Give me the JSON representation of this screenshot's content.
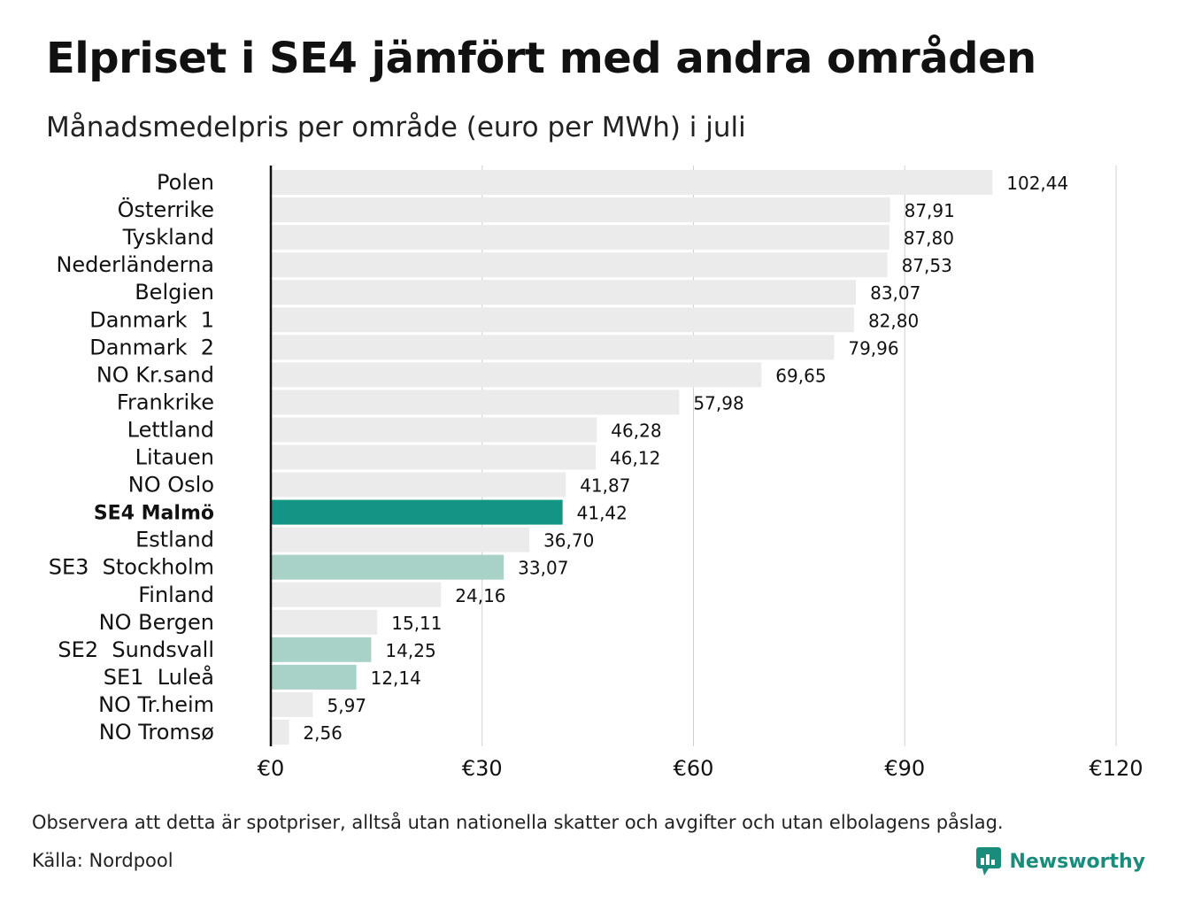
{
  "header": {
    "title": "Elpriset i SE4 jämfört med andra områden",
    "subtitle": "Månadsmedelpris per område (euro per MWh) i juli"
  },
  "footer": {
    "note": "Observera att detta är spotpriser, alltså utan nationella skatter och avgifter och utan elbolagens påslag.",
    "source": "Källa: Nordpool",
    "brand": "Newsworthy",
    "brand_icon": "newsworthy-logo-icon"
  },
  "colors": {
    "default_bar": "#ebebeb",
    "highlight_bar": "#139484",
    "swedish_bar": "#a8d1c8",
    "grid": "#d0d0d0",
    "axis": "#111111",
    "brand": "#1a8c7c"
  },
  "chart_data": {
    "type": "bar",
    "orientation": "horizontal",
    "title": "Elpriset i SE4 jämfört med andra områden",
    "subtitle": "Månadsmedelpris per område (euro per MWh) i juli",
    "xlim": [
      0,
      120
    ],
    "x_ticks": [
      0,
      30,
      60,
      90,
      120
    ],
    "x_tick_labels": [
      "€0",
      "€30",
      "€60",
      "€90",
      "€120"
    ],
    "grid": true,
    "categories": [
      "Polen",
      "Österrike",
      "Tyskland",
      "Nederländerna",
      "Belgien",
      "Danmark  1",
      "Danmark  2",
      "NO Kr.sand",
      "Frankrike",
      "Lettland",
      "Litauen",
      "NO Oslo",
      "SE4 Malmö",
      "Estland",
      "SE3  Stockholm",
      "Finland",
      "NO Bergen",
      "SE2  Sundsvall",
      "SE1  Luleå",
      "NO Tr.heim",
      "NO Tromsø"
    ],
    "values": [
      102.44,
      87.91,
      87.8,
      87.53,
      83.07,
      82.8,
      79.96,
      69.65,
      57.98,
      46.28,
      46.12,
      41.87,
      41.42,
      36.7,
      33.07,
      24.16,
      15.11,
      14.25,
      12.14,
      5.97,
      2.56
    ],
    "value_labels": [
      "102,44",
      "87,91",
      "87,80",
      "87,53",
      "83,07",
      "82,80",
      "79,96",
      "69,65",
      "57,98",
      "46,28",
      "46,12",
      "41,87",
      "41,42",
      "36,70",
      "33,07",
      "24,16",
      "15,11",
      "14,25",
      "12,14",
      "5,97",
      "2,56"
    ],
    "bar_style": [
      "default",
      "default",
      "default",
      "default",
      "default",
      "default",
      "default",
      "default",
      "default",
      "default",
      "default",
      "default",
      "highlight",
      "default",
      "swedish",
      "default",
      "default",
      "swedish",
      "swedish",
      "default",
      "default"
    ]
  }
}
